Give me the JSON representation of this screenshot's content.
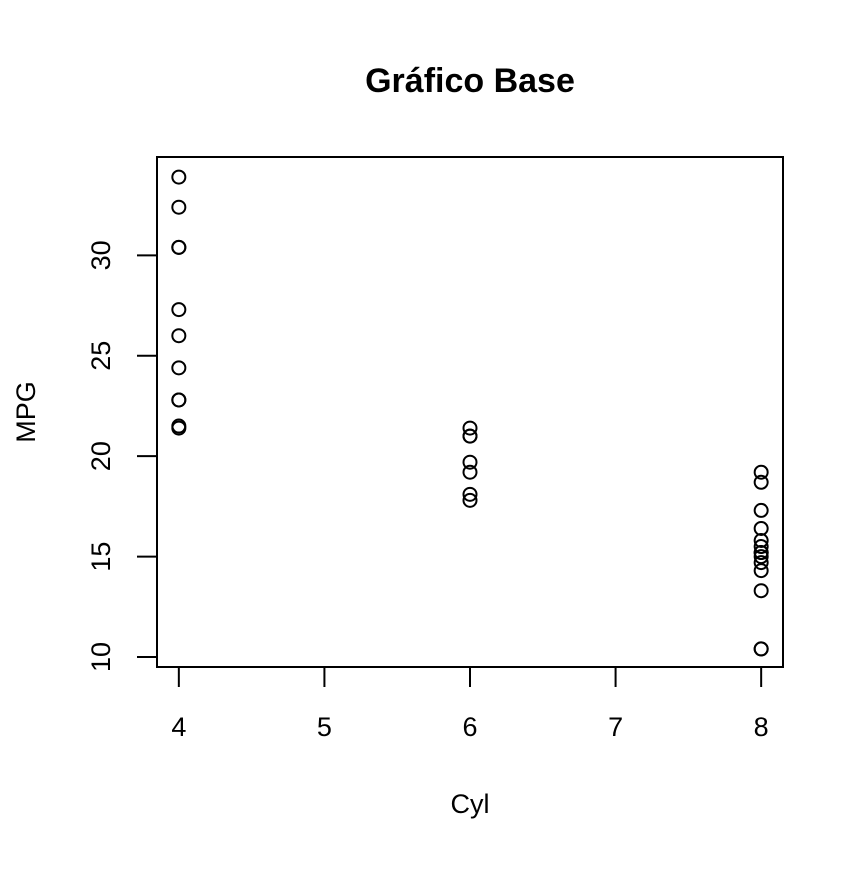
{
  "chart_data": {
    "type": "scatter",
    "title": "Gráfico Base",
    "xlabel": "Cyl",
    "ylabel": "MPG",
    "xlim": [
      3.85,
      8.15
    ],
    "ylim": [
      9.5,
      34.9
    ],
    "xticks": [
      4,
      5,
      6,
      7,
      8
    ],
    "yticks": [
      10,
      15,
      20,
      25,
      30
    ],
    "grid": false,
    "marker": "open-circle",
    "series": [
      {
        "points": [
          {
            "x": 4,
            "y": 22.8
          },
          {
            "x": 4,
            "y": 24.4
          },
          {
            "x": 4,
            "y": 22.8
          },
          {
            "x": 4,
            "y": 32.4
          },
          {
            "x": 4,
            "y": 30.4
          },
          {
            "x": 4,
            "y": 33.9
          },
          {
            "x": 4,
            "y": 21.5
          },
          {
            "x": 4,
            "y": 27.3
          },
          {
            "x": 4,
            "y": 26.0
          },
          {
            "x": 4,
            "y": 30.4
          },
          {
            "x": 4,
            "y": 21.4
          },
          {
            "x": 6,
            "y": 21.0
          },
          {
            "x": 6,
            "y": 21.0
          },
          {
            "x": 6,
            "y": 21.4
          },
          {
            "x": 6,
            "y": 18.1
          },
          {
            "x": 6,
            "y": 19.2
          },
          {
            "x": 6,
            "y": 17.8
          },
          {
            "x": 6,
            "y": 19.7
          },
          {
            "x": 8,
            "y": 18.7
          },
          {
            "x": 8,
            "y": 14.3
          },
          {
            "x": 8,
            "y": 16.4
          },
          {
            "x": 8,
            "y": 17.3
          },
          {
            "x": 8,
            "y": 15.2
          },
          {
            "x": 8,
            "y": 10.4
          },
          {
            "x": 8,
            "y": 10.4
          },
          {
            "x": 8,
            "y": 14.7
          },
          {
            "x": 8,
            "y": 15.5
          },
          {
            "x": 8,
            "y": 15.2
          },
          {
            "x": 8,
            "y": 13.3
          },
          {
            "x": 8,
            "y": 19.2
          },
          {
            "x": 8,
            "y": 15.8
          },
          {
            "x": 8,
            "y": 15.0
          }
        ]
      }
    ]
  }
}
